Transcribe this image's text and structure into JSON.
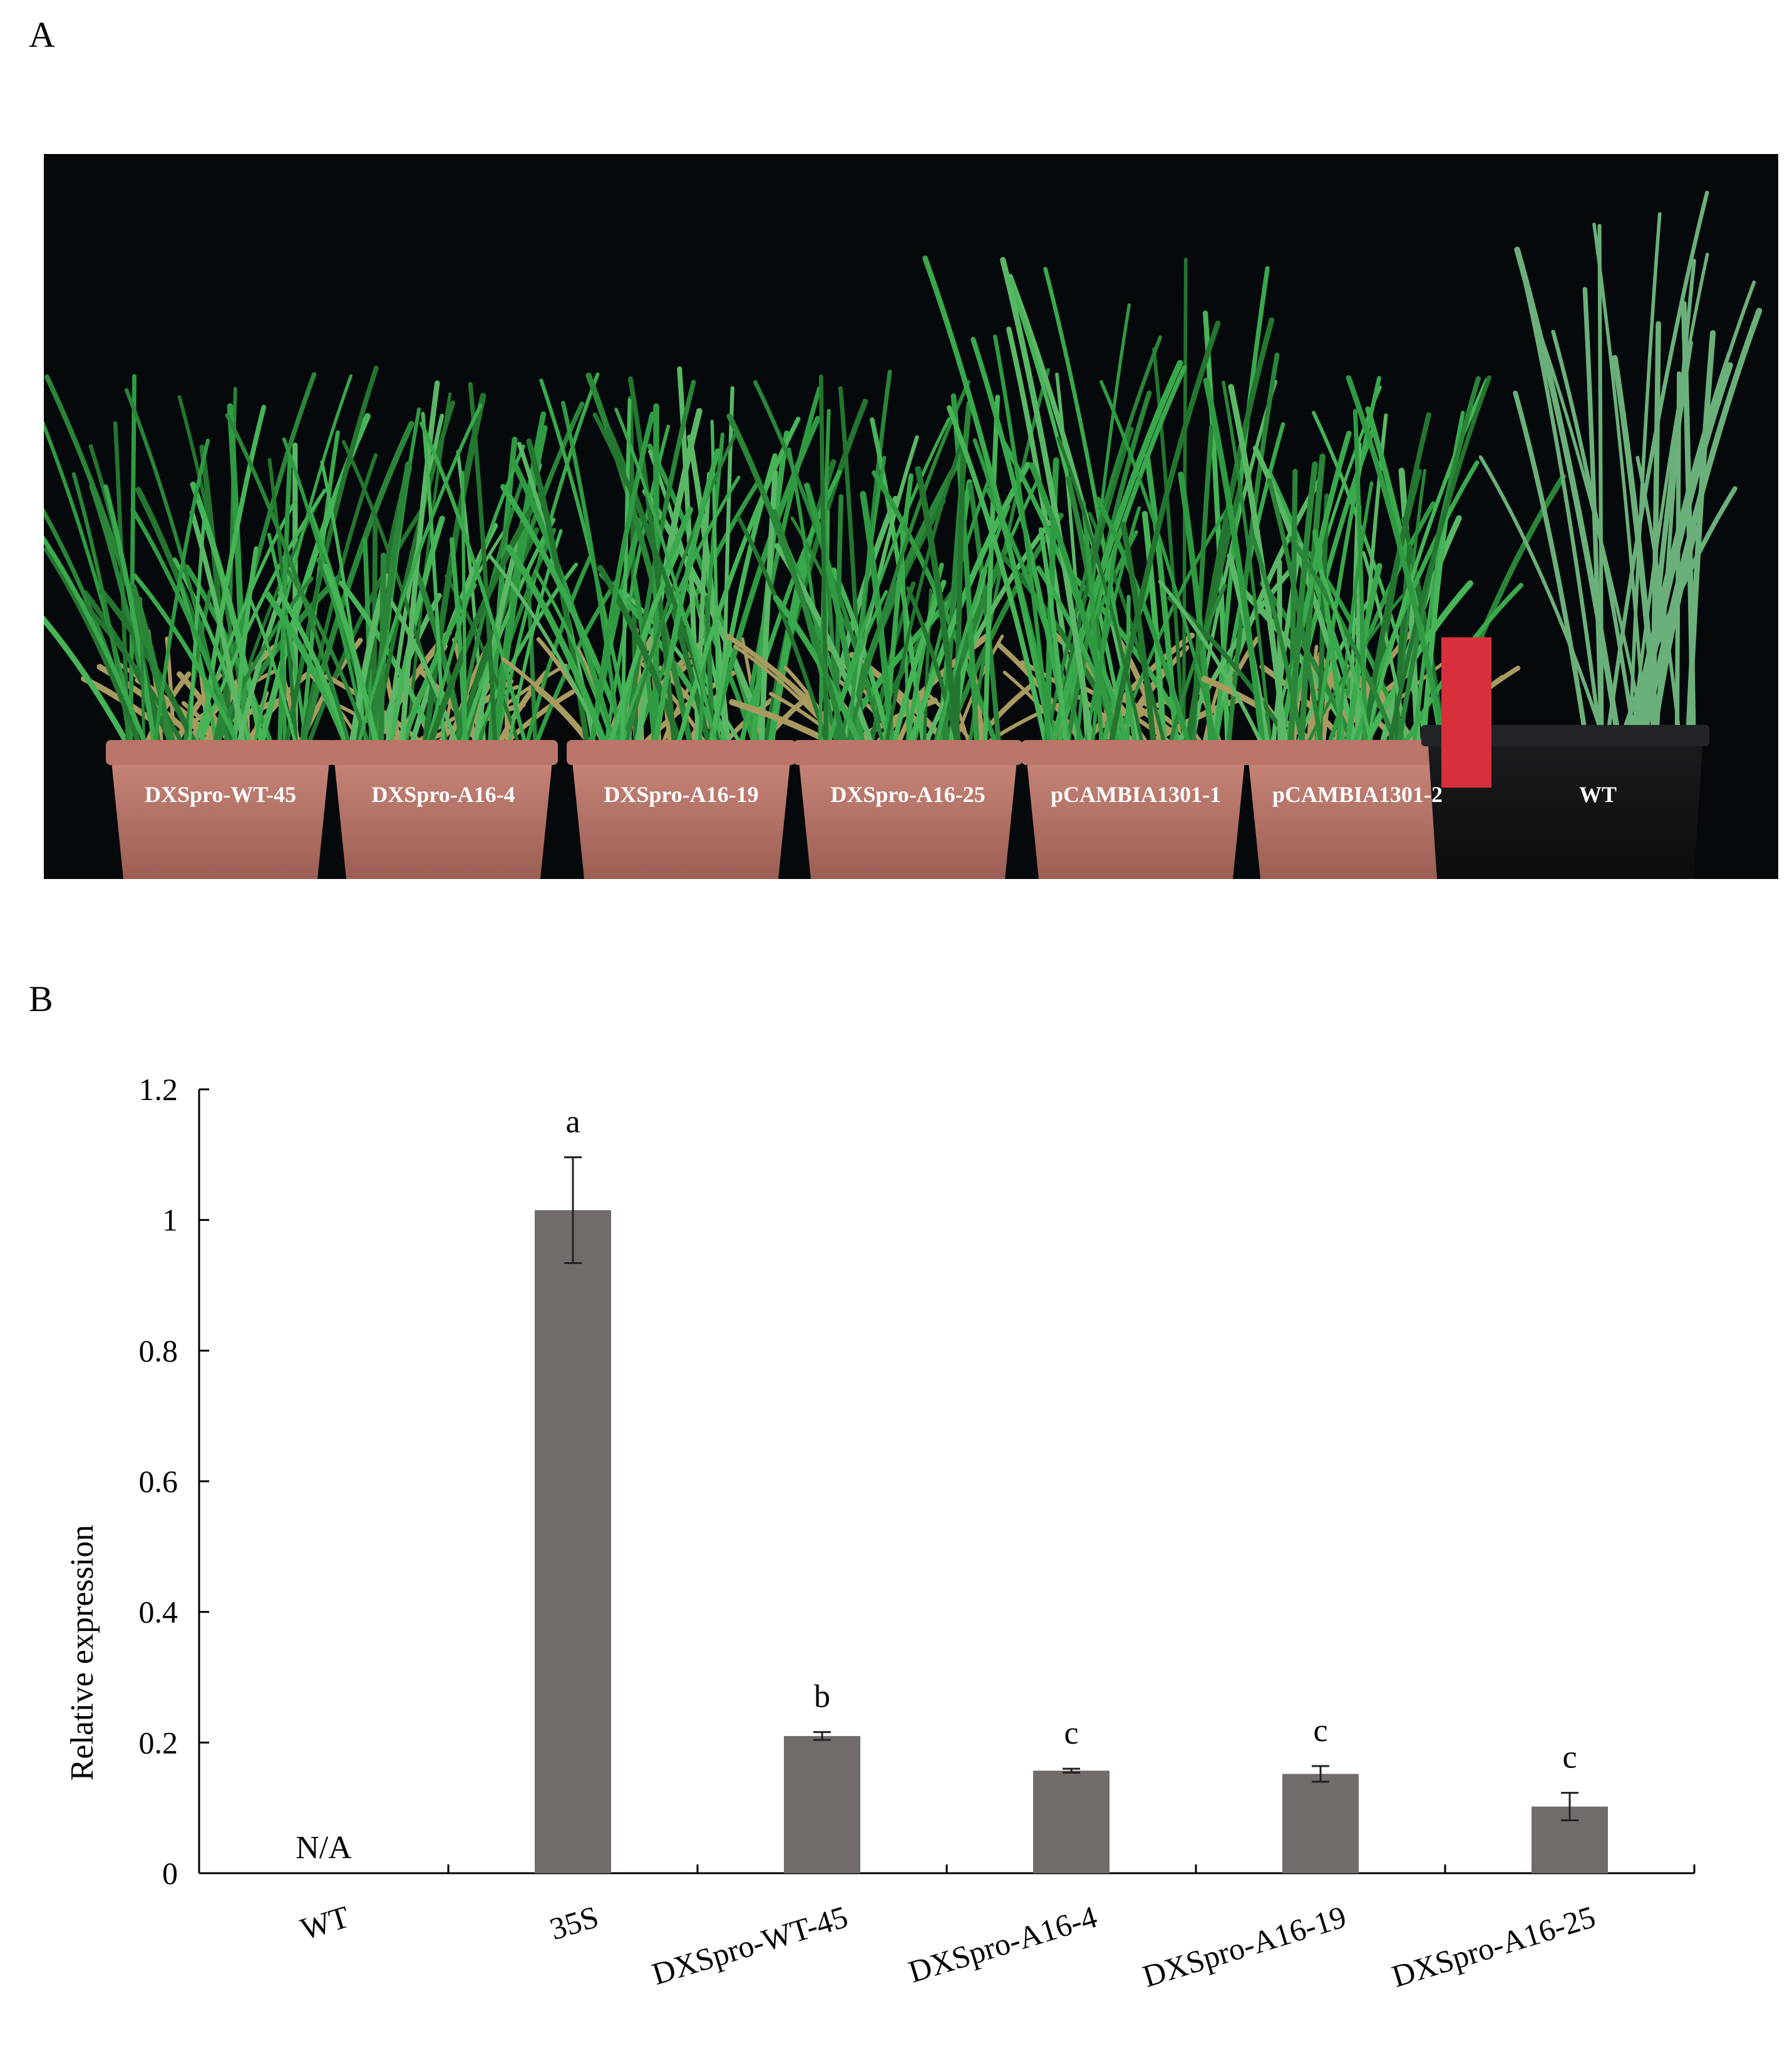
{
  "panel_a": {
    "letter": "A",
    "pot_labels": [
      "DXSpro-WT-45",
      "DXSpro-A16-4",
      "DXSpro-A16-19",
      "DXSpro-A16-25",
      "pCAMBIA1301-1",
      "pCAMBIA1301-2",
      "WT"
    ]
  },
  "panel_b": {
    "letter": "B"
  },
  "colors": {
    "bar": "#716c69",
    "photo_background": "#06090c",
    "pot": "#b8766a",
    "leaf": "#2e8c3e"
  },
  "chart_data": {
    "type": "bar",
    "categories": [
      "WT",
      "35S",
      "DXSpro-WT-45",
      "DXSpro-A16-4",
      "DXSpro-A16-19",
      "DXSpro-A16-25"
    ],
    "values": [
      null,
      1.015,
      0.21,
      0.157,
      0.152,
      0.102
    ],
    "errors": [
      null,
      0.081,
      0.006,
      0.003,
      0.012,
      0.021
    ],
    "significance": [
      "",
      "a",
      "b",
      "c",
      "c",
      "c"
    ],
    "value_annotations": [
      "N/A",
      "",
      "",
      "",
      "",
      ""
    ],
    "ylabel": "Relative expression",
    "ylim": [
      0,
      1.2
    ],
    "yticks": [
      "0",
      "0.2",
      "0.4",
      "0.6",
      "0.8",
      "1",
      "1.2"
    ],
    "ytick_values": [
      0,
      0.2,
      0.4,
      0.6,
      0.8,
      1.0,
      1.2
    ],
    "grid": false,
    "legend": "none"
  }
}
